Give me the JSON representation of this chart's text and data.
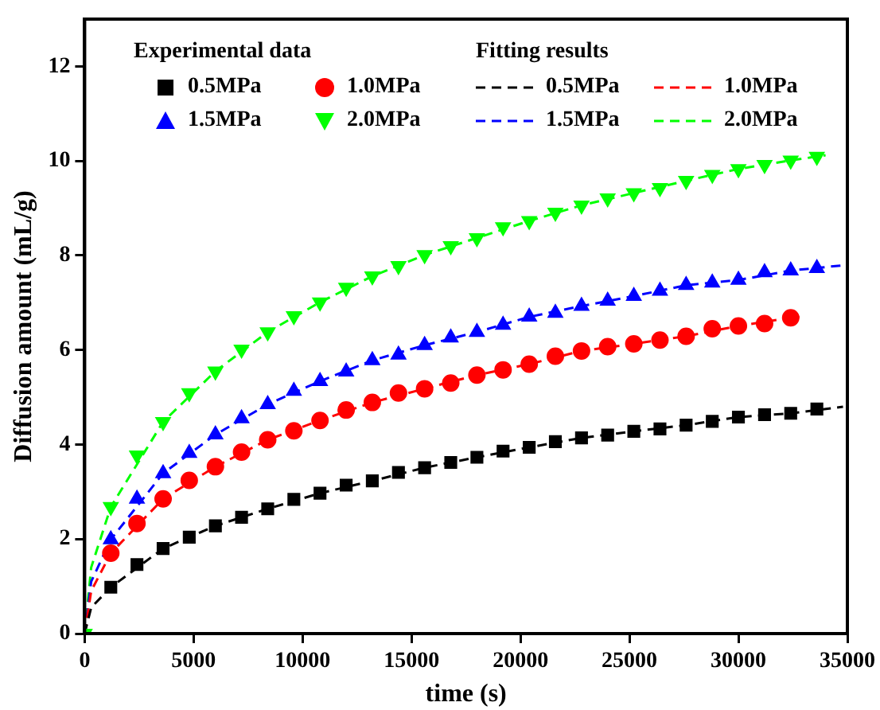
{
  "chart_data": {
    "type": "scatter",
    "xlabel": "time (s)",
    "ylabel": "Diffusion amount (mL/g)",
    "annotations": [
      "Experimental data",
      "Fitting results"
    ],
    "x": [
      0,
      1200,
      2400,
      3600,
      4800,
      6000,
      7200,
      8400,
      9600,
      10800,
      12000,
      13200,
      14400,
      15600,
      16800,
      18000,
      19200,
      20400,
      21600,
      22800,
      24000,
      25200,
      26400,
      27600,
      28800,
      30000,
      31200,
      32400,
      33600
    ],
    "xlim": [
      0,
      35000
    ],
    "xticks": [
      0,
      5000,
      10000,
      15000,
      20000,
      25000,
      30000,
      35000
    ],
    "ylim": [
      0,
      13
    ],
    "yticks": [
      0,
      2,
      4,
      6,
      8,
      10,
      12
    ],
    "grid": false,
    "legend": "top left",
    "series": [
      {
        "name": "0.5MPa",
        "marker": "square",
        "color": "#000000",
        "values": [
          null,
          0.98,
          1.46,
          1.8,
          2.04,
          2.28,
          2.46,
          2.64,
          2.84,
          2.97,
          3.14,
          3.23,
          3.41,
          3.51,
          3.62,
          3.73,
          3.86,
          3.94,
          4.06,
          4.14,
          4.2,
          4.28,
          4.33,
          4.41,
          4.49,
          4.58,
          4.63,
          4.66,
          4.75
        ]
      },
      {
        "name": "1.0MPa",
        "marker": "circle",
        "color": "#ff0000",
        "values": [
          null,
          1.7,
          2.33,
          2.85,
          3.24,
          3.53,
          3.84,
          4.1,
          4.29,
          4.51,
          4.73,
          4.89,
          5.09,
          5.18,
          5.3,
          5.47,
          5.58,
          5.7,
          5.87,
          5.98,
          6.07,
          6.13,
          6.21,
          6.29,
          6.45,
          6.51,
          6.56,
          6.68,
          null
        ]
      },
      {
        "name": "1.5MPa",
        "marker": "triangle",
        "color": "#0000ff",
        "values": [
          null,
          1.99,
          2.85,
          3.39,
          3.82,
          4.21,
          4.55,
          4.85,
          5.13,
          5.34,
          5.54,
          5.78,
          5.9,
          6.1,
          6.26,
          6.38,
          6.53,
          6.7,
          6.78,
          6.93,
          7.04,
          7.14,
          7.25,
          7.37,
          7.42,
          7.48,
          7.64,
          7.68,
          7.73
        ]
      },
      {
        "name": "2.0MPa",
        "marker": "triangle-down",
        "color": "#00ff00",
        "values": [
          0,
          2.68,
          3.77,
          4.48,
          5.09,
          5.55,
          6.01,
          6.38,
          6.72,
          7.01,
          7.32,
          7.56,
          7.78,
          8.01,
          8.2,
          8.37,
          8.6,
          8.73,
          8.91,
          9.06,
          9.21,
          9.32,
          9.43,
          9.58,
          9.71,
          9.83,
          9.92,
          10.01,
          10.09
        ]
      },
      {
        "name": "0.5MPa",
        "type": "line",
        "line_style": "dashed",
        "marker": "none",
        "color": "#000000",
        "x": [
          0,
          300,
          1200,
          3600,
          6000,
          8400,
          10800,
          13200,
          15600,
          18000,
          20400,
          22800,
          25200,
          27600,
          30000,
          32400,
          34800
        ],
        "values": [
          0,
          0.55,
          0.98,
          1.8,
          2.28,
          2.64,
          2.97,
          3.23,
          3.51,
          3.73,
          3.94,
          4.14,
          4.28,
          4.41,
          4.58,
          4.66,
          4.8
        ]
      },
      {
        "name": "1.0MPa",
        "type": "line",
        "line_style": "dashed",
        "marker": "none",
        "color": "#ff0000",
        "x": [
          0,
          300,
          1200,
          3600,
          6000,
          8400,
          10800,
          13200,
          15600,
          18000,
          20400,
          22800,
          25200,
          27600,
          30000,
          32400,
          32800
        ],
        "values": [
          0,
          0.9,
          1.7,
          2.85,
          3.53,
          4.1,
          4.51,
          4.89,
          5.18,
          5.47,
          5.7,
          5.98,
          6.13,
          6.29,
          6.51,
          6.68,
          6.7
        ]
      },
      {
        "name": "1.5MPa",
        "type": "line",
        "line_style": "dashed",
        "marker": "none",
        "color": "#0000ff",
        "x": [
          0,
          300,
          1200,
          3600,
          6000,
          8400,
          10800,
          13200,
          15600,
          18000,
          20400,
          22800,
          25200,
          27600,
          30000,
          32400,
          35000
        ],
        "values": [
          0,
          1.1,
          1.99,
          3.39,
          4.21,
          4.85,
          5.34,
          5.78,
          6.1,
          6.38,
          6.7,
          6.93,
          7.14,
          7.37,
          7.48,
          7.68,
          7.8
        ]
      },
      {
        "name": "2.0MPa",
        "type": "line",
        "line_style": "dashed",
        "marker": "none",
        "color": "#00ff00",
        "x": [
          0,
          300,
          1200,
          3600,
          6000,
          8400,
          10800,
          13200,
          15600,
          18000,
          20400,
          22800,
          25200,
          27600,
          30000,
          32400,
          34000
        ],
        "values": [
          0,
          1.4,
          2.68,
          4.48,
          5.55,
          6.38,
          7.01,
          7.56,
          8.01,
          8.37,
          8.73,
          9.06,
          9.32,
          9.58,
          9.83,
          10.01,
          10.12
        ]
      }
    ]
  }
}
